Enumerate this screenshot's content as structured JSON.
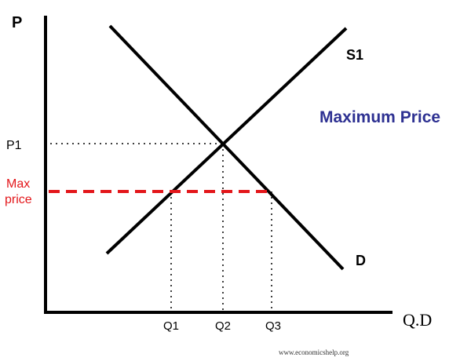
{
  "diagram": {
    "y_axis_label": "P",
    "x_axis_label": "Q.D",
    "supply_label": "S1",
    "demand_label": "D",
    "title": "Maximum Price",
    "price_label_p1": "P1",
    "max_price_label_line1": "Max",
    "max_price_label_line2": "price",
    "quantity_labels": [
      "Q1",
      "Q2",
      "Q3"
    ],
    "source": "www.economicshelp.org"
  },
  "colors": {
    "axis": "#000000",
    "curves": "#000000",
    "title": "#2e3192",
    "max_price": "#e3171b",
    "guides": "#000000"
  }
}
